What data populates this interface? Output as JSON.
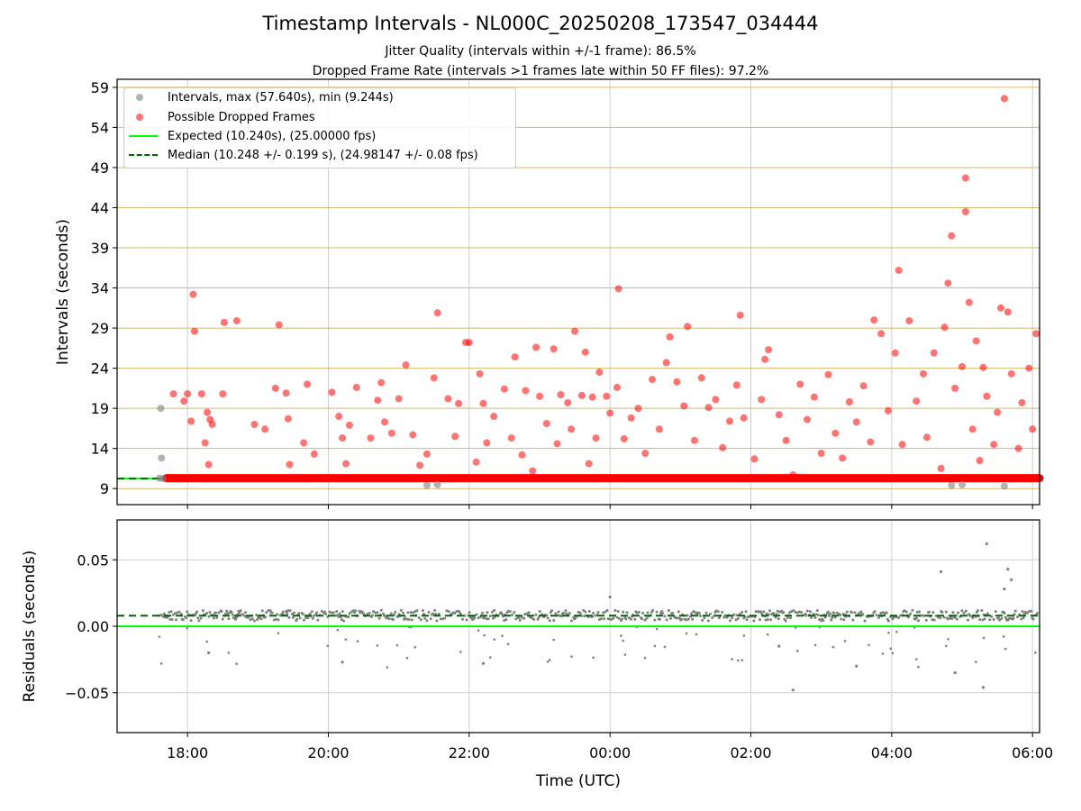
{
  "title": "Timestamp Intervals - NL000C_20250208_173547_034444",
  "subtitle_1": "Jitter Quality (intervals within +/-1 frame): 86.5%",
  "subtitle_2": "Dropped Frame Rate (intervals >1 frames late within 50 FF files): 97.2%",
  "legend": {
    "intervals": "Intervals, max (57.640s), min (9.244s)",
    "dropped": "Possible Dropped Frames",
    "expected": "Expected (10.240s), (25.00000 fps)",
    "median": "Median (10.248 +/- 0.199 s), (24.98147 +/- 0.08 fps)"
  },
  "colors": {
    "intervals": "#808080",
    "dropped": "#ff0000",
    "expected": "#00ff00",
    "median": "#006400",
    "hgrid_top": "#d4b96a",
    "grid": "#cfcfcf"
  },
  "chart_data": [
    {
      "type": "scatter",
      "title": "",
      "xlabel": "",
      "ylabel": "Intervals (seconds)",
      "x_unit": "hours relative to 00:00 UTC (2025-02-09)",
      "xlim": [
        -7.0,
        6.1
      ],
      "ylim": [
        7.0,
        60.0
      ],
      "yticks": [
        9,
        14,
        19,
        24,
        29,
        34,
        39,
        44,
        49,
        54,
        59
      ],
      "grid": true,
      "legend_position": "upper left",
      "expected_interval": 10.24,
      "median_interval": 10.248,
      "series": [
        {
          "name": "Intervals, max (57.640s), min (9.244s)",
          "points": [
            [
              -6.4,
              10.3
            ],
            [
              -6.38,
              19.0
            ],
            [
              -6.37,
              12.8
            ],
            [
              -6.35,
              10.24
            ],
            [
              -2.6,
              9.4
            ],
            [
              -2.45,
              9.5
            ],
            [
              4.85,
              9.4
            ],
            [
              5.0,
              9.5
            ],
            [
              5.6,
              9.3
            ]
          ]
        },
        {
          "name": "Possible Dropped Frames",
          "baseline": {
            "x_start": -6.3,
            "x_end": 6.1,
            "y": 10.3
          },
          "points": [
            [
              -6.2,
              20.8
            ],
            [
              -6.05,
              19.9
            ],
            [
              -6.0,
              20.8
            ],
            [
              -5.95,
              17.4
            ],
            [
              -5.92,
              33.2
            ],
            [
              -5.9,
              28.6
            ],
            [
              -5.8,
              20.8
            ],
            [
              -5.75,
              14.7
            ],
            [
              -5.72,
              18.5
            ],
            [
              -5.7,
              12.0
            ],
            [
              -5.68,
              17.6
            ],
            [
              -5.65,
              17.0
            ],
            [
              -5.5,
              20.8
            ],
            [
              -5.48,
              29.7
            ],
            [
              -5.3,
              29.9
            ],
            [
              -5.05,
              17.0
            ],
            [
              -4.9,
              16.4
            ],
            [
              -4.75,
              21.5
            ],
            [
              -4.7,
              29.4
            ],
            [
              -4.6,
              20.9
            ],
            [
              -4.57,
              17.7
            ],
            [
              -4.55,
              12.0
            ],
            [
              -4.35,
              14.7
            ],
            [
              -4.3,
              22.0
            ],
            [
              -4.2,
              13.3
            ],
            [
              -3.95,
              21.0
            ],
            [
              -3.85,
              18.0
            ],
            [
              -3.8,
              15.3
            ],
            [
              -3.75,
              12.1
            ],
            [
              -3.7,
              16.9
            ],
            [
              -3.6,
              21.6
            ],
            [
              -3.4,
              15.3
            ],
            [
              -3.3,
              20.0
            ],
            [
              -3.25,
              22.2
            ],
            [
              -3.2,
              17.3
            ],
            [
              -3.1,
              15.9
            ],
            [
              -3.0,
              20.2
            ],
            [
              -2.9,
              24.4
            ],
            [
              -2.8,
              15.7
            ],
            [
              -2.7,
              11.9
            ],
            [
              -2.6,
              13.3
            ],
            [
              -2.5,
              22.8
            ],
            [
              -2.45,
              30.9
            ],
            [
              -2.3,
              20.2
            ],
            [
              -2.2,
              15.5
            ],
            [
              -2.15,
              19.6
            ],
            [
              -2.05,
              27.2
            ],
            [
              -2.0,
              27.2
            ],
            [
              -1.9,
              12.3
            ],
            [
              -1.85,
              23.3
            ],
            [
              -1.8,
              19.6
            ],
            [
              -1.75,
              14.7
            ],
            [
              -1.65,
              18.0
            ],
            [
              -1.5,
              21.4
            ],
            [
              -1.4,
              15.3
            ],
            [
              -1.35,
              25.4
            ],
            [
              -1.25,
              13.2
            ],
            [
              -1.2,
              21.2
            ],
            [
              -1.1,
              11.2
            ],
            [
              -1.05,
              26.6
            ],
            [
              -1.0,
              20.5
            ],
            [
              -0.9,
              17.1
            ],
            [
              -0.8,
              26.4
            ],
            [
              -0.75,
              14.6
            ],
            [
              -0.7,
              20.7
            ],
            [
              -0.6,
              19.7
            ],
            [
              -0.55,
              16.4
            ],
            [
              -0.5,
              28.6
            ],
            [
              -0.4,
              20.6
            ],
            [
              -0.35,
              26.0
            ],
            [
              -0.3,
              12.1
            ],
            [
              -0.25,
              20.4
            ],
            [
              -0.2,
              15.3
            ],
            [
              -0.15,
              23.5
            ],
            [
              -0.05,
              20.5
            ],
            [
              0.0,
              18.4
            ],
            [
              0.1,
              21.6
            ],
            [
              0.12,
              33.9
            ],
            [
              0.2,
              15.2
            ],
            [
              0.3,
              17.8
            ],
            [
              0.4,
              19.0
            ],
            [
              0.5,
              13.4
            ],
            [
              0.6,
              22.6
            ],
            [
              0.7,
              16.4
            ],
            [
              0.8,
              24.7
            ],
            [
              0.85,
              27.9
            ],
            [
              0.95,
              22.3
            ],
            [
              1.05,
              19.3
            ],
            [
              1.1,
              29.2
            ],
            [
              1.2,
              15.0
            ],
            [
              1.3,
              22.8
            ],
            [
              1.4,
              19.1
            ],
            [
              1.5,
              20.1
            ],
            [
              1.6,
              14.1
            ],
            [
              1.7,
              17.4
            ],
            [
              1.8,
              21.9
            ],
            [
              1.85,
              30.6
            ],
            [
              1.9,
              17.8
            ],
            [
              2.05,
              12.7
            ],
            [
              2.15,
              20.1
            ],
            [
              2.2,
              25.1
            ],
            [
              2.25,
              26.3
            ],
            [
              2.4,
              18.2
            ],
            [
              2.5,
              15.0
            ],
            [
              2.6,
              10.7
            ],
            [
              2.7,
              22.0
            ],
            [
              2.8,
              17.6
            ],
            [
              2.9,
              20.4
            ],
            [
              3.0,
              13.4
            ],
            [
              3.1,
              23.2
            ],
            [
              3.2,
              15.9
            ],
            [
              3.3,
              12.8
            ],
            [
              3.4,
              19.8
            ],
            [
              3.5,
              17.3
            ],
            [
              3.6,
              21.8
            ],
            [
              3.7,
              14.8
            ],
            [
              3.75,
              30.0
            ],
            [
              3.85,
              28.3
            ],
            [
              3.95,
              18.7
            ],
            [
              4.05,
              25.9
            ],
            [
              4.1,
              36.2
            ],
            [
              4.15,
              14.5
            ],
            [
              4.25,
              29.9
            ],
            [
              4.35,
              19.9
            ],
            [
              4.45,
              23.3
            ],
            [
              4.5,
              15.4
            ],
            [
              4.6,
              25.9
            ],
            [
              4.7,
              11.5
            ],
            [
              4.75,
              29.1
            ],
            [
              4.8,
              34.6
            ],
            [
              4.85,
              40.5
            ],
            [
              4.9,
              21.5
            ],
            [
              5.0,
              24.2
            ],
            [
              5.05,
              47.7
            ],
            [
              5.05,
              43.5
            ],
            [
              5.1,
              32.2
            ],
            [
              5.15,
              16.4
            ],
            [
              5.2,
              27.4
            ],
            [
              5.25,
              12.5
            ],
            [
              5.3,
              24.1
            ],
            [
              5.35,
              20.5
            ],
            [
              5.45,
              14.5
            ],
            [
              5.5,
              18.5
            ],
            [
              5.55,
              31.5
            ],
            [
              5.6,
              57.6
            ],
            [
              5.65,
              31.0
            ],
            [
              5.7,
              23.3
            ],
            [
              5.8,
              14.0
            ],
            [
              5.85,
              19.7
            ],
            [
              5.95,
              24.0
            ],
            [
              6.0,
              16.4
            ],
            [
              6.05,
              28.3
            ]
          ]
        },
        {
          "name": "Expected (10.240s), (25.00000 fps)",
          "y": 10.24
        },
        {
          "name": "Median (10.248 +/- 0.199 s), (24.98147 +/- 0.08 fps)",
          "y": 10.248
        }
      ]
    },
    {
      "type": "scatter",
      "title": "",
      "xlabel": "Time (UTC)",
      "ylabel": "Residuals (seconds)",
      "xticks": [
        "18:00",
        "20:00",
        "22:00",
        "00:00",
        "02:00",
        "04:00",
        "06:00"
      ],
      "xtick_values": [
        -6,
        -4,
        -2,
        0,
        2,
        4,
        6
      ],
      "xlim": [
        -7.0,
        6.1
      ],
      "ylim": [
        -0.08,
        0.08
      ],
      "yticks": [
        -0.05,
        0.0,
        0.05
      ],
      "ytick_labels": [
        "−0.05",
        "0.00",
        "0.05"
      ],
      "grid": true,
      "expected_residual": 0.0,
      "median_residual": 0.008,
      "residual_band": {
        "x_start": -6.4,
        "x_end": 6.1,
        "center": 0.008,
        "spread": 0.004
      },
      "outliers": [
        [
          0.0,
          0.022
        ],
        [
          2.6,
          -0.048
        ],
        [
          4.7,
          0.041
        ],
        [
          5.35,
          0.062
        ],
        [
          5.3,
          -0.046
        ],
        [
          5.65,
          0.043
        ],
        [
          5.7,
          0.035
        ],
        [
          5.6,
          0.028
        ],
        [
          -5.7,
          -0.02
        ],
        [
          -3.8,
          -0.027
        ],
        [
          -1.8,
          -0.028
        ],
        [
          2.4,
          -0.015
        ],
        [
          3.5,
          -0.03
        ],
        [
          4.9,
          -0.035
        ]
      ]
    }
  ]
}
